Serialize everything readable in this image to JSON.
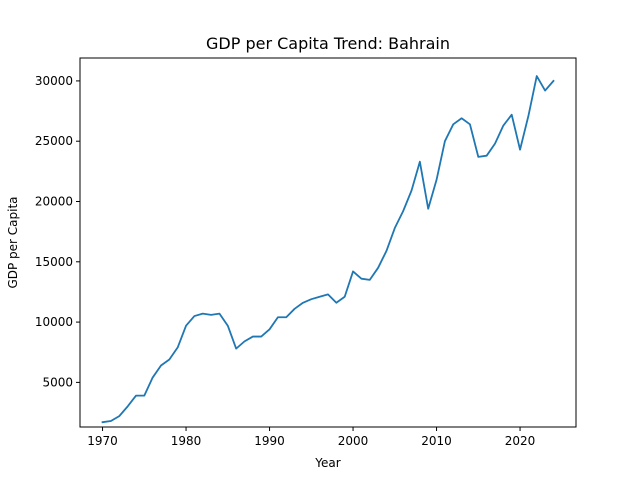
{
  "chart_data": {
    "type": "line",
    "title": "GDP per Capita Trend: Bahrain",
    "xlabel": "Year",
    "ylabel": "GDP per Capita",
    "xlim": [
      1967.3,
      2026.7
    ],
    "ylim": [
      1300,
      31900
    ],
    "xticks": [
      1970,
      1980,
      1990,
      2000,
      2010,
      2020
    ],
    "yticks": [
      5000,
      10000,
      15000,
      20000,
      25000,
      30000
    ],
    "grid": false,
    "line_color": "#1f77b4",
    "series": [
      {
        "x": [
          1970,
          1971,
          1972,
          1973,
          1974,
          1975,
          1976,
          1977,
          1978,
          1979,
          1980,
          1981,
          1982,
          1983,
          1984,
          1985,
          1986,
          1987,
          1988,
          1989,
          1990,
          1991,
          1992,
          1993,
          1994,
          1995,
          1996,
          1997,
          1998,
          1999,
          2000,
          2001,
          2002,
          2003,
          2004,
          2005,
          2006,
          2007,
          2008,
          2009,
          2010,
          2011,
          2012,
          2013,
          2014,
          2015,
          2016,
          2017,
          2018,
          2019,
          2020,
          2021,
          2022,
          2023,
          2024
        ],
        "y": [
          1700,
          1800,
          2200,
          3000,
          3900,
          3900,
          5400,
          6400,
          6900,
          7900,
          9700,
          10500,
          10700,
          10600,
          10700,
          9700,
          7800,
          8400,
          8800,
          8800,
          9400,
          10400,
          10400,
          11100,
          11600,
          11900,
          12100,
          12300,
          11600,
          12100,
          14200,
          13600,
          13500,
          14500,
          15900,
          17800,
          19200,
          20900,
          23300,
          19400,
          21800,
          25000,
          26400,
          26900,
          26400,
          23700,
          23800,
          24800,
          26300,
          27200,
          24300,
          27100,
          30400,
          29200,
          30000
        ]
      }
    ]
  }
}
